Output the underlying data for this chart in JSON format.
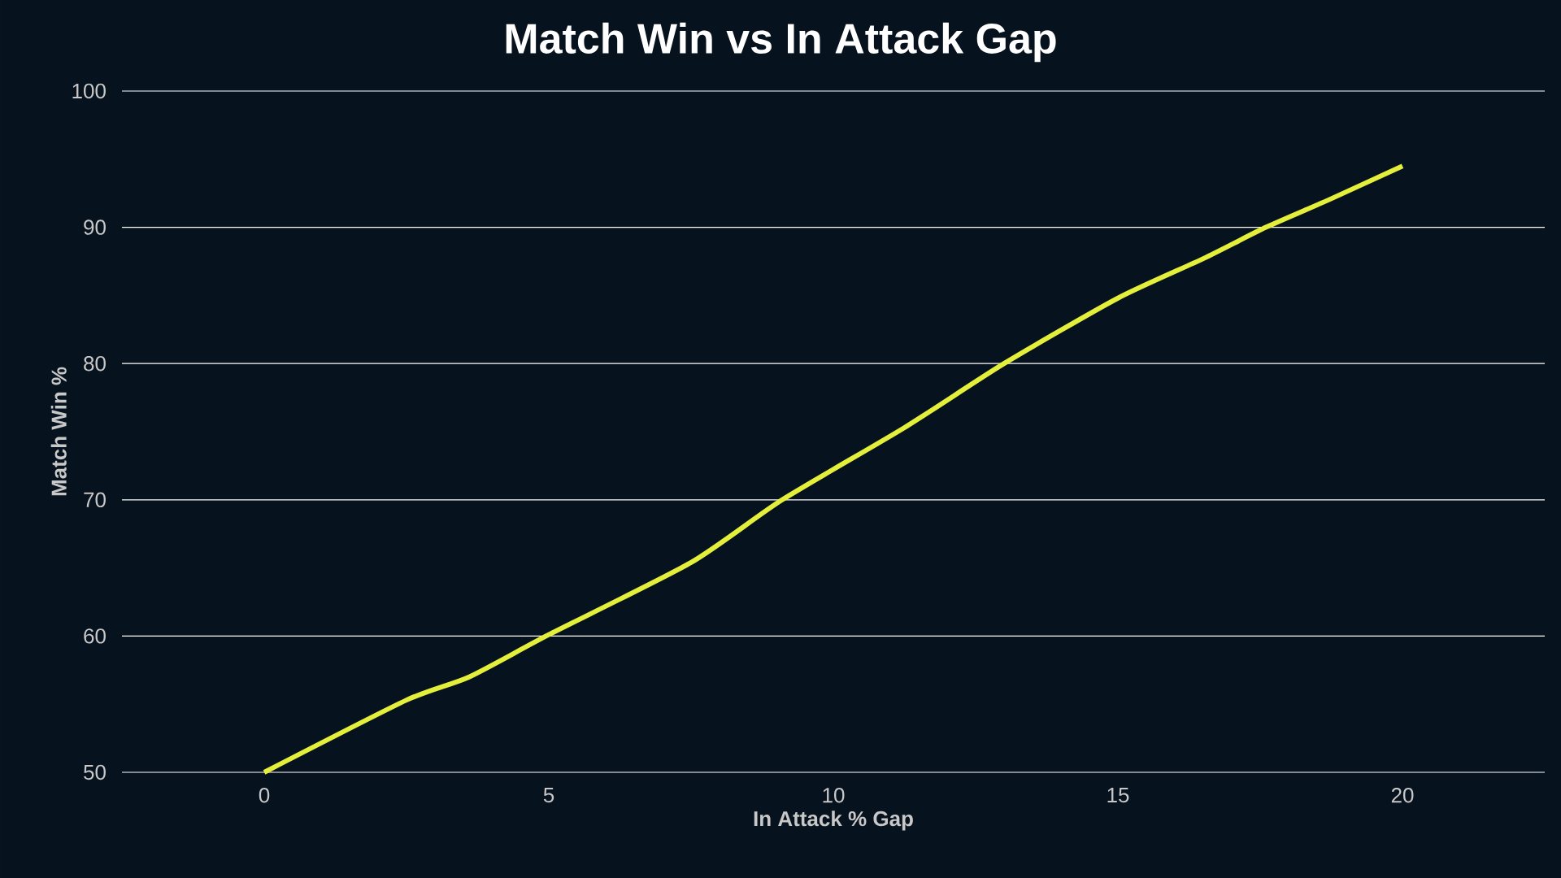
{
  "chart_data": {
    "type": "line",
    "title": "Match Win vs In Attack Gap",
    "xlabel": "In Attack % Gap",
    "ylabel": "Match Win %",
    "series": [
      {
        "color": "#e3ef3a",
        "x": [
          0,
          2.5,
          3.6,
          5,
          7.5,
          9.1,
          11.25,
          13,
          15,
          16.5,
          17.6,
          18.75,
          20
        ],
        "values": [
          50,
          55.3,
          57,
          60.1,
          65.4,
          70,
          75.3,
          80,
          84.8,
          87.7,
          90,
          92.1,
          94.5
        ]
      }
    ],
    "xlim": [
      -2.5,
      22.5
    ],
    "ylim": [
      50,
      100
    ],
    "xticks": [
      0,
      5,
      10,
      15,
      20
    ],
    "yticks": [
      50,
      60,
      70,
      80,
      90,
      100
    ],
    "grid": "y",
    "marker": "none",
    "line_style": "solid"
  }
}
